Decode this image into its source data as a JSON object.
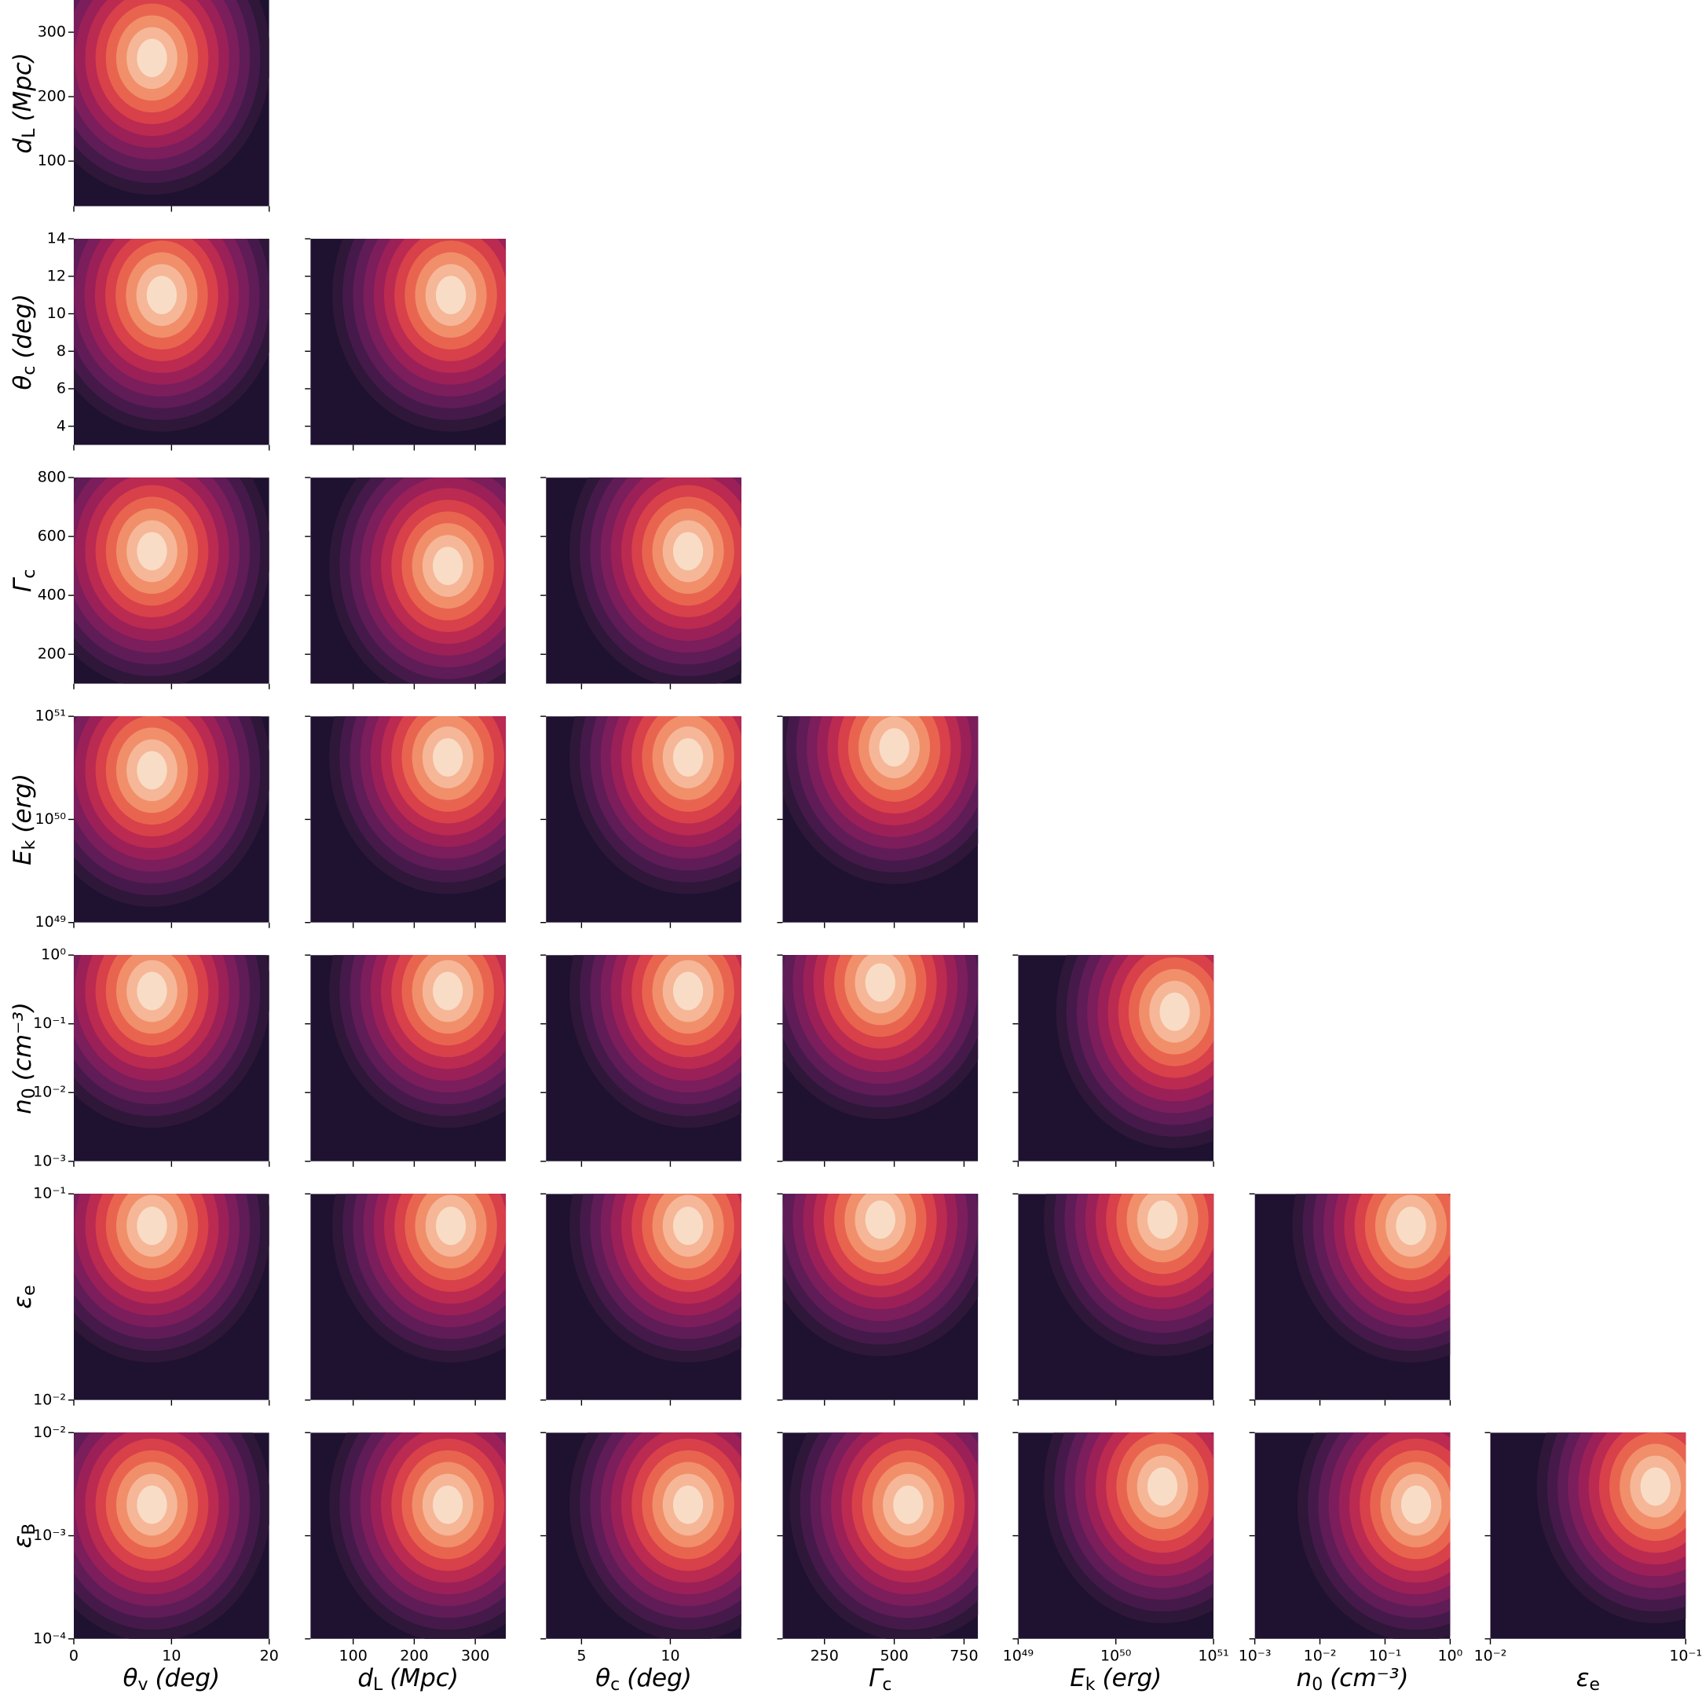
{
  "chart_data": {
    "type": "corner",
    "colors": [
      "#1f1130",
      "#2e1739",
      "#451a4b",
      "#5f1c57",
      "#7b1e5b",
      "#9b2058",
      "#bb2a50",
      "#d8404a",
      "#e9644f",
      "#f18f6b",
      "#f5b797",
      "#f9dcc6"
    ],
    "parameters": [
      {
        "symbol": "θ",
        "sub": "v",
        "unit": "(deg)",
        "lim": [
          0,
          20
        ],
        "log": false,
        "xticks": [
          0,
          10,
          20
        ],
        "yticks": []
      },
      {
        "symbol": "d",
        "sub": "L",
        "unit": "(Mpc)",
        "lim": [
          30,
          350
        ],
        "log": false,
        "xticks": [
          100,
          200,
          300
        ],
        "yticks": [
          100,
          200,
          300
        ]
      },
      {
        "symbol": "θ",
        "sub": "c",
        "unit": "(deg)",
        "lim": [
          3,
          14
        ],
        "log": false,
        "xticks": [
          5,
          10
        ],
        "yticks": [
          4,
          6,
          8,
          10,
          12,
          14
        ]
      },
      {
        "symbol": "Γ",
        "sub": "c",
        "lim": [
          100,
          800
        ],
        "log": false,
        "xticks": [
          250,
          500,
          750
        ],
        "yticks": [
          200,
          400,
          600,
          800
        ]
      },
      {
        "symbol": "E",
        "sub": "k",
        "unit": "(erg)",
        "lim": [
          1e+49,
          1e+51
        ],
        "log": true,
        "xticks": [
          {
            "value": 1e+49,
            "label": "10⁴⁹"
          },
          {
            "value": 1e+50,
            "label": "10⁵⁰"
          },
          {
            "value": 1e+51,
            "label": "10⁵¹"
          }
        ],
        "yticks": [
          {
            "value": 1e+49,
            "label": "10⁴⁹"
          },
          {
            "value": 1e+50,
            "label": "10⁵⁰"
          },
          {
            "value": 1e+51,
            "label": "10⁵¹"
          }
        ]
      },
      {
        "symbol": "n",
        "sub": "0",
        "unit": "(cm⁻³)",
        "lim": [
          0.001,
          1
        ],
        "log": true,
        "xticks": [
          {
            "value": 0.001,
            "label": "10⁻³"
          },
          {
            "value": 0.01,
            "label": "10⁻²"
          },
          {
            "value": 0.1,
            "label": "10⁻¹"
          },
          {
            "value": 1,
            "label": "10⁰"
          }
        ],
        "yticks": [
          {
            "value": 0.001,
            "label": "10⁻³"
          },
          {
            "value": 0.01,
            "label": "10⁻²"
          },
          {
            "value": 0.1,
            "label": "10⁻¹"
          },
          {
            "value": 1,
            "label": "10⁰"
          }
        ]
      },
      {
        "symbol": "ε",
        "sub": "e",
        "lim": [
          0.01,
          0.1
        ],
        "log": true,
        "xticks": [
          {
            "value": 0.01,
            "label": "10⁻²"
          },
          {
            "value": 0.1,
            "label": "10⁻¹"
          }
        ],
        "yticks": [
          {
            "value": 0.01,
            "label": "10⁻²"
          },
          {
            "value": 0.1,
            "label": "10⁻¹"
          }
        ]
      },
      {
        "symbol": "ε",
        "sub": "B",
        "lim": [
          0.0001,
          0.01
        ],
        "log": true,
        "xticks": [],
        "yticks": [
          {
            "value": 0.0001,
            "label": "10⁻⁴"
          },
          {
            "value": 0.001,
            "label": "10⁻³"
          },
          {
            "value": 0.01,
            "label": "10⁻²"
          }
        ]
      }
    ],
    "panels": [
      {
        "x": 0,
        "y": 1,
        "peak_x": 8,
        "peak_y": 260
      },
      {
        "x": 0,
        "y": 2,
        "peak_x": 9,
        "peak_y": 11
      },
      {
        "x": 1,
        "y": 2,
        "peak_x": 260,
        "peak_y": 11
      },
      {
        "x": 0,
        "y": 3,
        "peak_x": 8,
        "peak_y": 550
      },
      {
        "x": 1,
        "y": 3,
        "peak_x": 255,
        "peak_y": 500
      },
      {
        "x": 2,
        "y": 3,
        "peak_x": 11,
        "peak_y": 550
      },
      {
        "x": 0,
        "y": 4,
        "peak_x": 8,
        "peak_y": 3e+50
      },
      {
        "x": 1,
        "y": 4,
        "peak_x": 255,
        "peak_y": 4e+50
      },
      {
        "x": 2,
        "y": 4,
        "peak_x": 11,
        "peak_y": 4e+50
      },
      {
        "x": 3,
        "y": 4,
        "peak_x": 500,
        "peak_y": 5e+50
      },
      {
        "x": 0,
        "y": 5,
        "peak_x": 8,
        "peak_y": 0.3
      },
      {
        "x": 1,
        "y": 5,
        "peak_x": 255,
        "peak_y": 0.3
      },
      {
        "x": 2,
        "y": 5,
        "peak_x": 11,
        "peak_y": 0.3
      },
      {
        "x": 3,
        "y": 5,
        "peak_x": 450,
        "peak_y": 0.4
      },
      {
        "x": 4,
        "y": 5,
        "peak_x": 4e+50,
        "peak_y": 0.15
      },
      {
        "x": 0,
        "y": 6,
        "peak_x": 8,
        "peak_y": 0.07
      },
      {
        "x": 1,
        "y": 6,
        "peak_x": 260,
        "peak_y": 0.07
      },
      {
        "x": 2,
        "y": 6,
        "peak_x": 11,
        "peak_y": 0.07
      },
      {
        "x": 3,
        "y": 6,
        "peak_x": 450,
        "peak_y": 0.075
      },
      {
        "x": 4,
        "y": 6,
        "peak_x": 3e+50,
        "peak_y": 0.075
      },
      {
        "x": 5,
        "y": 6,
        "peak_x": 0.25,
        "peak_y": 0.07
      },
      {
        "x": 0,
        "y": 7,
        "peak_x": 8,
        "peak_y": 0.002
      },
      {
        "x": 1,
        "y": 7,
        "peak_x": 255,
        "peak_y": 0.002
      },
      {
        "x": 2,
        "y": 7,
        "peak_x": 11,
        "peak_y": 0.002
      },
      {
        "x": 3,
        "y": 7,
        "peak_x": 550,
        "peak_y": 0.002
      },
      {
        "x": 4,
        "y": 7,
        "peak_x": 3e+50,
        "peak_y": 0.003
      },
      {
        "x": 5,
        "y": 7,
        "peak_x": 0.3,
        "peak_y": 0.002
      },
      {
        "x": 6,
        "y": 7,
        "peak_x": 0.07,
        "peak_y": 0.003
      }
    ]
  }
}
